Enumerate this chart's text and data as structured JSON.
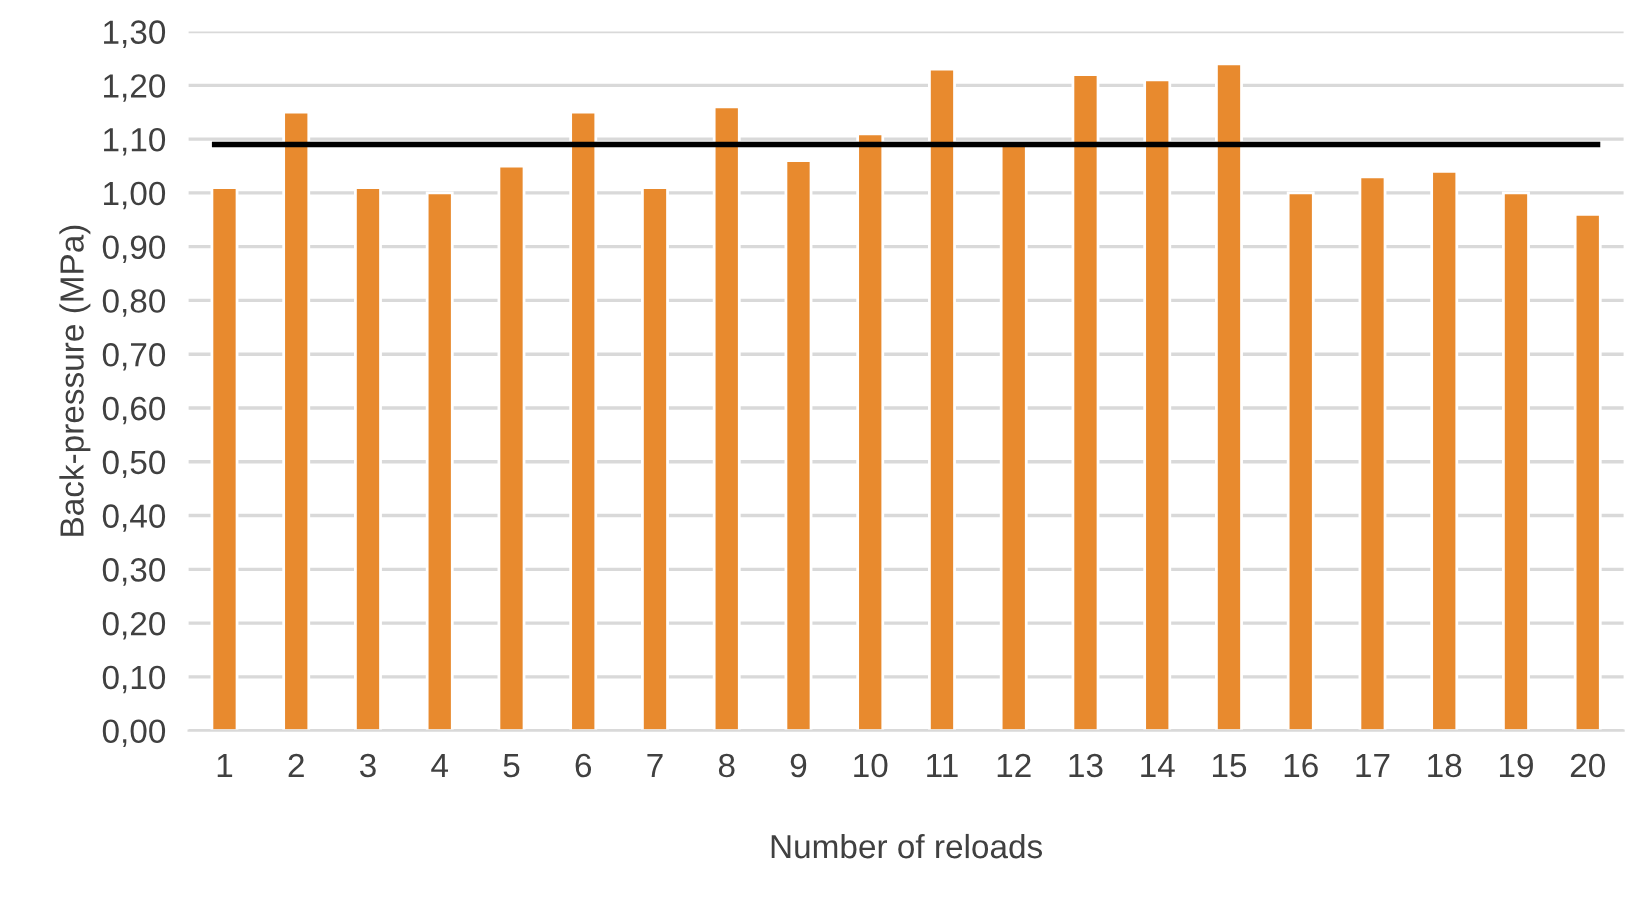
{
  "chart_data": {
    "type": "bar",
    "xlabel": "Number of reloads",
    "ylabel": "Back-pressure (MPa)",
    "categories": [
      "1",
      "2",
      "3",
      "4",
      "5",
      "6",
      "7",
      "8",
      "9",
      "10",
      "11",
      "12",
      "13",
      "14",
      "15",
      "16",
      "17",
      "18",
      "19",
      "20"
    ],
    "values": [
      1.01,
      1.15,
      1.01,
      1.0,
      1.05,
      1.15,
      1.01,
      1.16,
      1.06,
      1.11,
      1.23,
      1.09,
      1.22,
      1.21,
      1.24,
      1.0,
      1.03,
      1.04,
      1.0,
      0.96
    ],
    "color": "#e88a2e",
    "ylim": [
      0,
      1.3
    ],
    "yticks": [
      {
        "value": 0,
        "label": "0,00"
      },
      {
        "value": 0.1,
        "label": "0,10"
      },
      {
        "value": 0.2,
        "label": "0,20"
      },
      {
        "value": 0.3,
        "label": "0,30"
      },
      {
        "value": 0.4,
        "label": "0,40"
      },
      {
        "value": 0.5,
        "label": "0,50"
      },
      {
        "value": 0.6,
        "label": "0,60"
      },
      {
        "value": 0.7,
        "label": "0,70"
      },
      {
        "value": 0.8,
        "label": "0,80"
      },
      {
        "value": 0.9,
        "label": "0,90"
      },
      {
        "value": 1.0,
        "label": "1,00"
      },
      {
        "value": 1.1,
        "label": "1,10"
      },
      {
        "value": 1.2,
        "label": "1,20"
      },
      {
        "value": 1.3,
        "label": "1,30"
      }
    ],
    "ref_lines": [
      {
        "axis": "y",
        "value": 1.09,
        "color": "#000000",
        "line_style": "solid"
      }
    ],
    "grid": "y",
    "legend": false
  }
}
